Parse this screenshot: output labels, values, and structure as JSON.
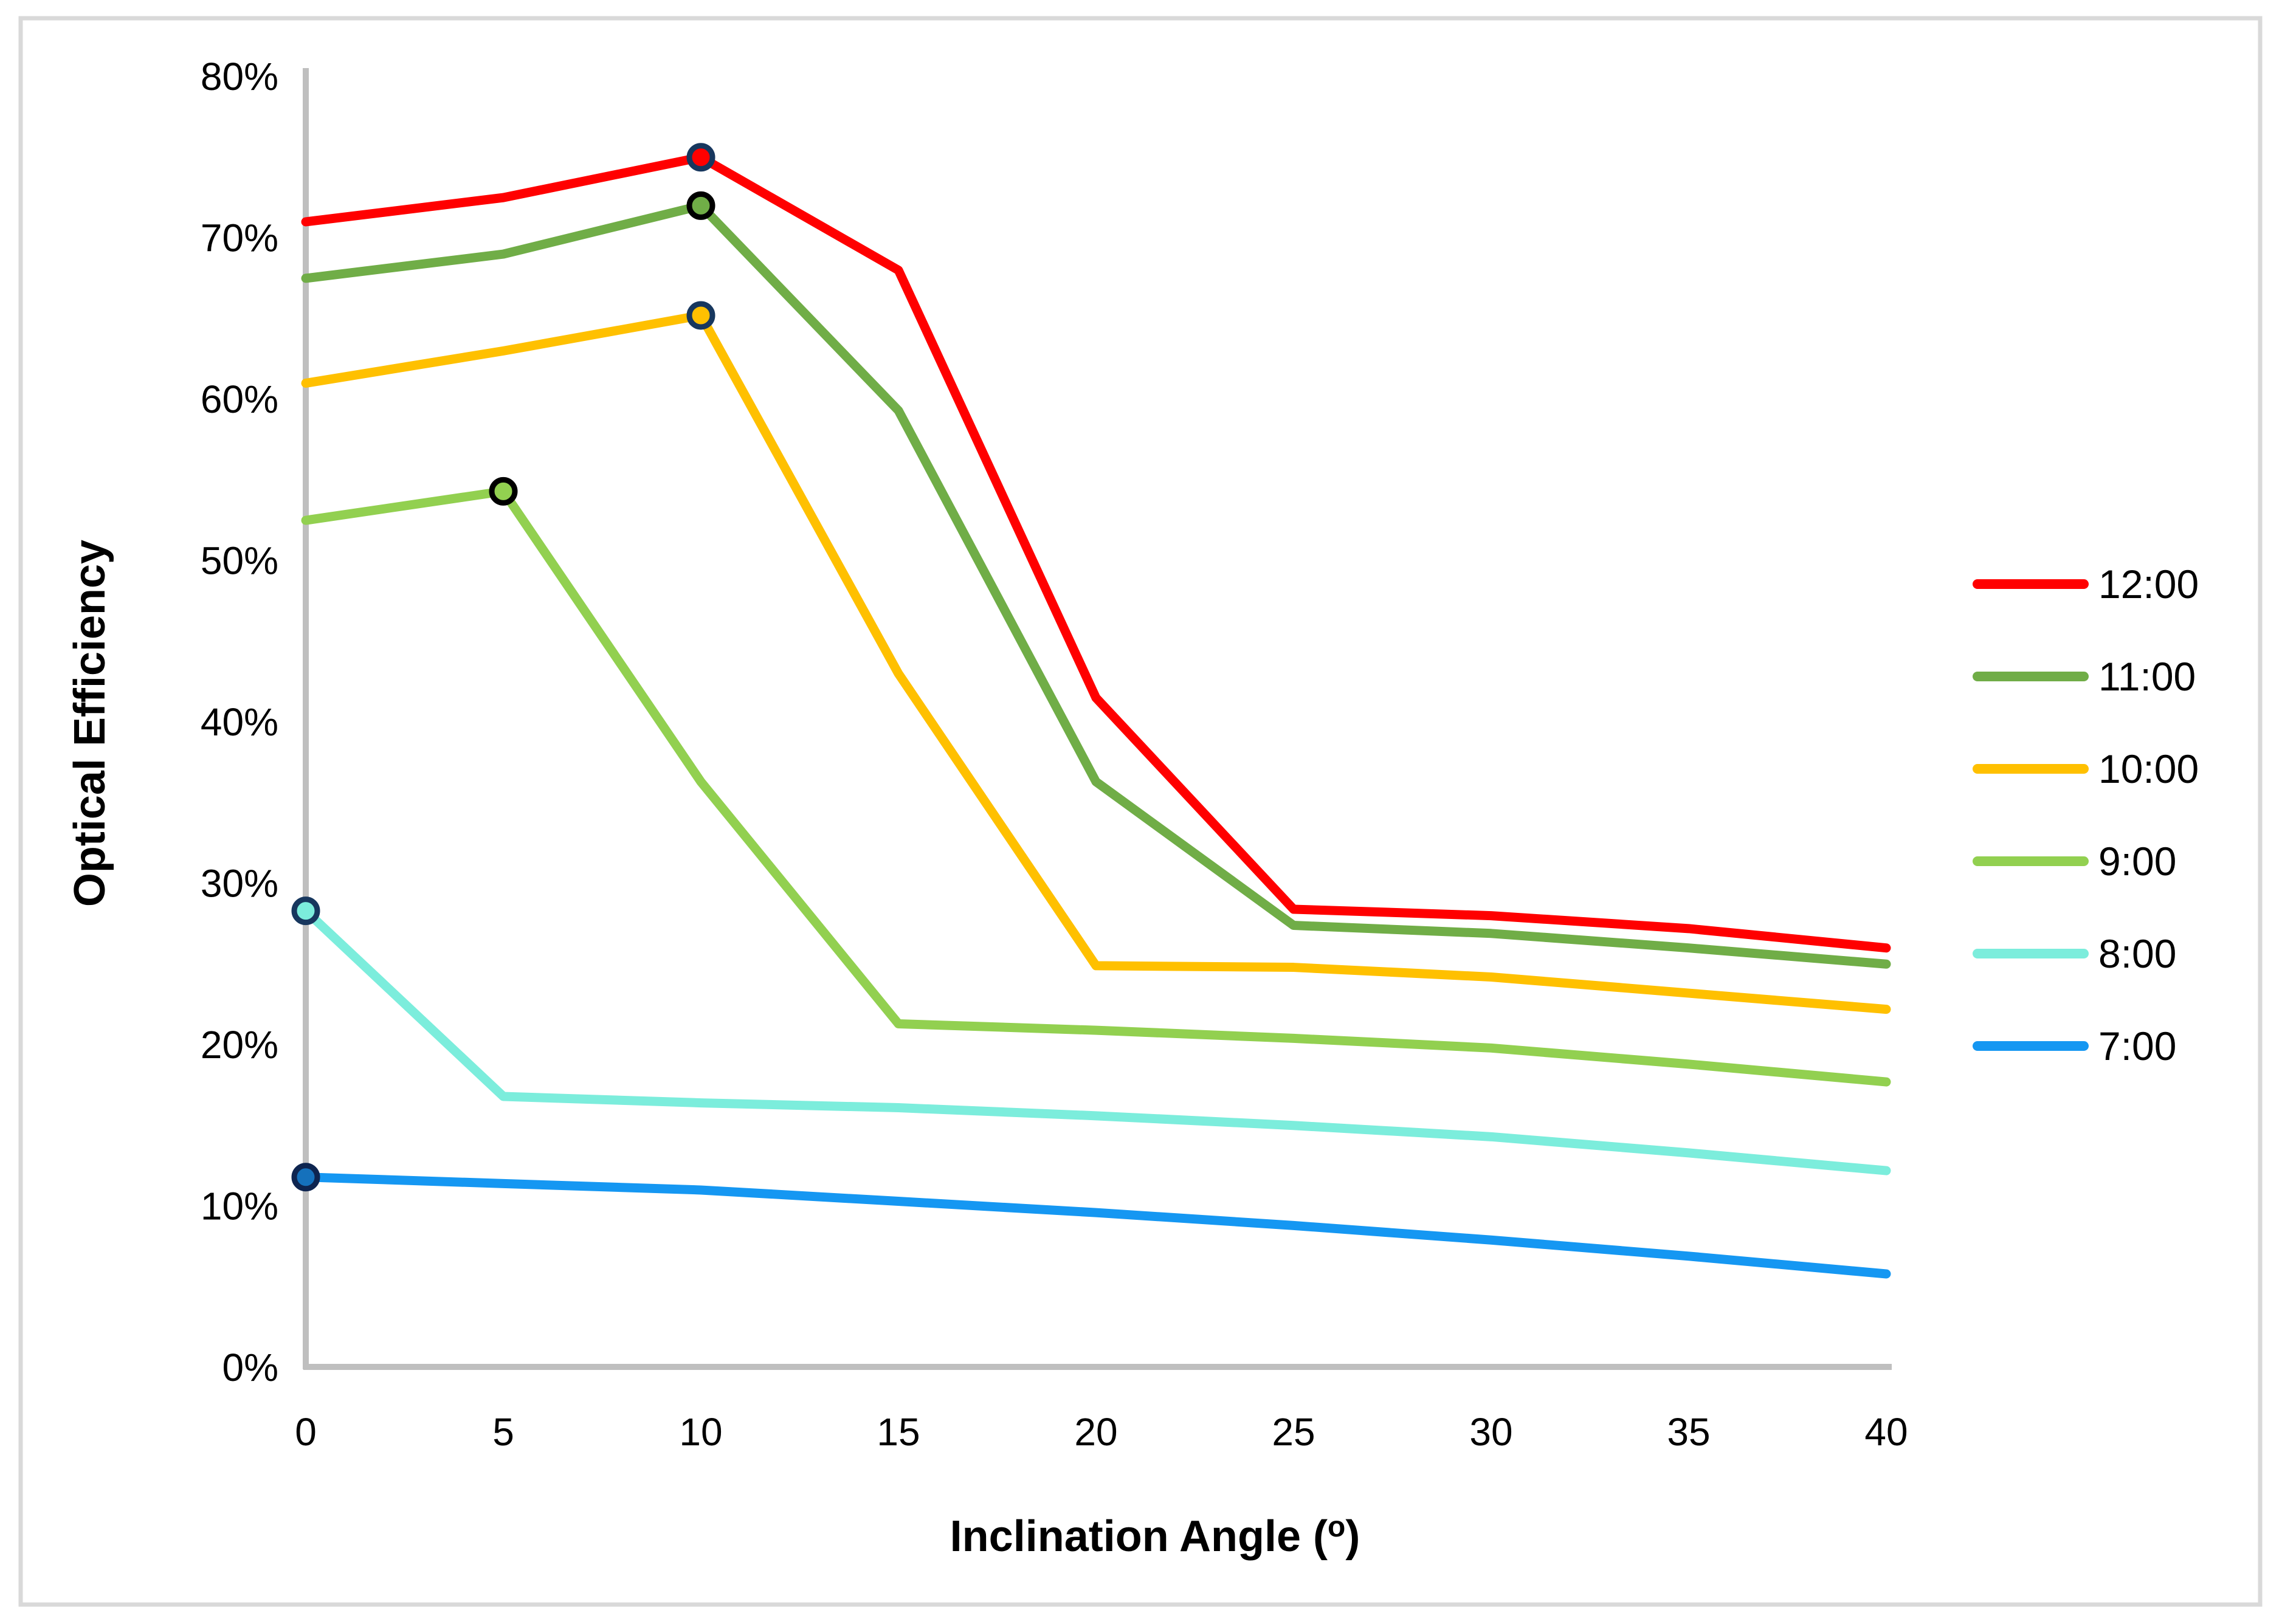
{
  "figure": {
    "y_axis_title": "Optical Efficiency",
    "x_axis_title_prefix": "Inclination Angle (",
    "x_axis_title_sup": "o",
    "x_axis_title_suffix": ")"
  },
  "chart_data": {
    "type": "line",
    "title": "",
    "xlabel": "Inclination Angle (°)",
    "ylabel": "Optical Efficiency",
    "x": [
      0,
      5,
      10,
      15,
      20,
      25,
      30,
      35,
      40
    ],
    "x_tick_labels": [
      "0",
      "5",
      "10",
      "15",
      "20",
      "25",
      "30",
      "35",
      "40"
    ],
    "y_tick_labels": [
      "0%",
      "10%",
      "20%",
      "30%",
      "40%",
      "50%",
      "60%",
      "70%",
      "80%"
    ],
    "y_tick_values": [
      0,
      10,
      20,
      30,
      40,
      50,
      60,
      70,
      80
    ],
    "xlim": [
      0,
      40
    ],
    "ylim": [
      0,
      80
    ],
    "grid": false,
    "legend_position": "right-middle",
    "series": [
      {
        "name": "12:00",
        "color": "#FF0000",
        "values": [
          71,
          72.5,
          75,
          68,
          41.5,
          28.4,
          28,
          27.2,
          26
        ],
        "marker": {
          "x": 10,
          "y": 75,
          "fill": "#FF0000",
          "stroke": "#17375E"
        }
      },
      {
        "name": "11:00",
        "color": "#70AD47",
        "values": [
          67.5,
          69,
          72,
          59.3,
          36.3,
          27.4,
          26.9,
          26,
          25
        ],
        "marker": {
          "x": 10,
          "y": 72,
          "fill": "#70AD47",
          "stroke": "#000000"
        }
      },
      {
        "name": "10:00",
        "color": "#FFC000",
        "values": [
          61,
          63,
          65.2,
          43,
          24.9,
          24.8,
          24.2,
          23.2,
          22.2
        ],
        "marker": {
          "x": 10,
          "y": 65.2,
          "fill": "#FFC000",
          "stroke": "#17375E"
        }
      },
      {
        "name": "9:00",
        "color": "#92D050",
        "values": [
          52.5,
          54.3,
          36.3,
          21.3,
          20.9,
          20.4,
          19.8,
          18.8,
          17.7
        ],
        "marker": {
          "x": 5,
          "y": 54.3,
          "fill": "#92D050",
          "stroke": "#000000"
        }
      },
      {
        "name": "8:00",
        "color": "#7CEDDC",
        "values": [
          28.3,
          16.8,
          16.4,
          16.1,
          15.6,
          15,
          14.3,
          13.3,
          12.2
        ],
        "marker": {
          "x": 0,
          "y": 28.3,
          "fill": "#7CEDDC",
          "stroke": "#17375E"
        }
      },
      {
        "name": "7:00",
        "color": "#1597F2",
        "values": [
          11.8,
          11.4,
          11,
          10.3,
          9.6,
          8.8,
          7.9,
          6.9,
          5.8
        ],
        "marker": {
          "x": 0,
          "y": 11.8,
          "fill": "#1571BC",
          "stroke": "#0E2550"
        }
      }
    ],
    "colors": {
      "axis": "#BFBFBF",
      "frame_border": "#D9D9D9",
      "text": "#000000",
      "background": "#FFFFFF"
    }
  }
}
